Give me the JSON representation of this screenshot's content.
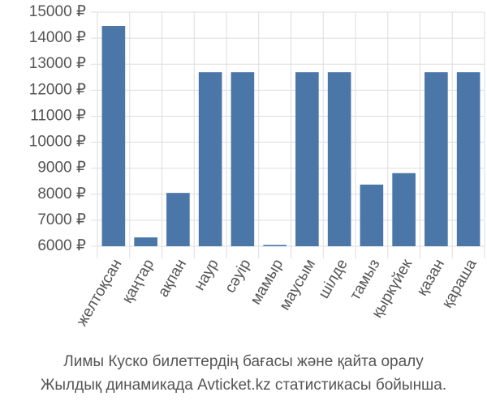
{
  "chart_data": {
    "type": "bar",
    "title": "Лимы Куско билеттердің бағасы және қайта оралу",
    "subtitle": "Жылдық динамикада Avticket.kz статистикасы бойынша.",
    "categories": [
      "желтоқсан",
      "қаңтар",
      "ақпан",
      "наур",
      "сәуір",
      "мамыр",
      "маусым",
      "шілде",
      "тамыз",
      "қыркүйек",
      "қазан",
      "қараша"
    ],
    "values": [
      14470,
      6340,
      8050,
      12690,
      12690,
      6050,
      12690,
      12690,
      8370,
      8810,
      12690,
      12690
    ],
    "color": "#4a76a8",
    "ylim": [
      6000,
      15000
    ],
    "yticks": [
      {
        "value": 6000,
        "label": "6000 ₽"
      },
      {
        "value": 7000,
        "label": "7000 ₽"
      },
      {
        "value": 8000,
        "label": "8000 ₽"
      },
      {
        "value": 9000,
        "label": "9000 ₽"
      },
      {
        "value": 10000,
        "label": "10000 ₽"
      },
      {
        "value": 11000,
        "label": "11000 ₽"
      },
      {
        "value": 12000,
        "label": "12000 ₽"
      },
      {
        "value": 13000,
        "label": "13000 ₽"
      },
      {
        "value": 14000,
        "label": "14000 ₽"
      },
      {
        "value": 15000,
        "label": "15000 ₽"
      }
    ],
    "grid": true
  }
}
